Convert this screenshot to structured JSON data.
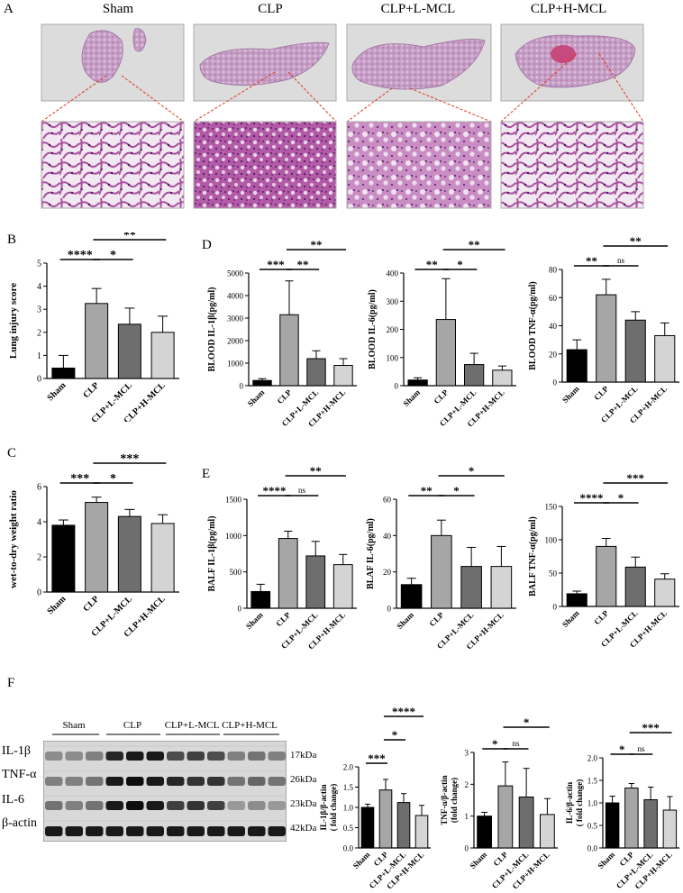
{
  "panels": {
    "A": {
      "letter": "A",
      "groups": [
        "Sham",
        "CLP",
        "CLP+L-MCL",
        "CLP+H-MCL"
      ]
    },
    "B": {
      "letter": "B"
    },
    "C": {
      "letter": "C"
    },
    "D": {
      "letter": "D"
    },
    "E": {
      "letter": "E"
    },
    "F": {
      "letter": "F",
      "blot_groups": [
        "Sham",
        "CLP",
        "CLP+L-MCL",
        "CLP+H-MCL"
      ],
      "rows": [
        {
          "protein": "IL-1β",
          "size": "17kDa"
        },
        {
          "protein": "TNF-α",
          "size": "26kDa"
        },
        {
          "protein": "IL-6",
          "size": "23kDa"
        },
        {
          "protein": "β-actin",
          "size": "42kDa"
        }
      ]
    }
  },
  "chart_data": [
    {
      "id": "B",
      "type": "bar",
      "categories": [
        "Sham",
        "CLP",
        "CLP+L-MCL",
        "CLP+H-MCL"
      ],
      "values": [
        0.45,
        3.25,
        2.35,
        2.0
      ],
      "errors": [
        0.55,
        0.65,
        0.7,
        0.7
      ],
      "ylabel": "Lung injury score",
      "ylabel2": "",
      "ylim": [
        0,
        5
      ],
      "yticks": [
        "0",
        "1",
        "2",
        "3",
        "4",
        "5"
      ],
      "sig": [
        {
          "from": 0,
          "to": 1,
          "label": "****",
          "level": 0
        },
        {
          "from": 1,
          "to": 2,
          "label": "*",
          "level": 0
        },
        {
          "from": 1,
          "to": 3,
          "label": "**",
          "level": 1
        }
      ]
    },
    {
      "id": "C",
      "type": "bar",
      "categories": [
        "Sham",
        "CLP",
        "CLP+L-MCL",
        "CLP+H-MCL"
      ],
      "values": [
        3.8,
        5.1,
        4.3,
        3.9
      ],
      "errors": [
        0.3,
        0.3,
        0.4,
        0.5
      ],
      "ylabel": "wet-to-dry weight ratio",
      "ylabel2": "",
      "ylim": [
        0,
        6
      ],
      "yticks": [
        "0",
        "2",
        "4",
        "6"
      ],
      "sig": [
        {
          "from": 0,
          "to": 1,
          "label": "***",
          "level": 0
        },
        {
          "from": 1,
          "to": 2,
          "label": "*",
          "level": 0
        },
        {
          "from": 1,
          "to": 3,
          "label": "***",
          "level": 1
        }
      ]
    },
    {
      "id": "D1",
      "type": "bar",
      "categories": [
        "Sham",
        "CLP",
        "CLP+L-MCL",
        "CLP+H-MCL"
      ],
      "values": [
        230,
        3150,
        1200,
        900
      ],
      "errors": [
        80,
        1500,
        350,
        300
      ],
      "ylabel": "BLOOD IL-1β(pg/ml)",
      "ylabel2": "",
      "ylim": [
        0,
        5000
      ],
      "yticks": [
        "0",
        "1000",
        "2000",
        "3000",
        "4000",
        "5000"
      ],
      "sig": [
        {
          "from": 0,
          "to": 1,
          "label": "***",
          "level": 0
        },
        {
          "from": 1,
          "to": 2,
          "label": "**",
          "level": 0
        },
        {
          "from": 1,
          "to": 3,
          "label": "**",
          "level": 1
        }
      ]
    },
    {
      "id": "D2",
      "type": "bar",
      "categories": [
        "Sham",
        "CLP",
        "CLP+L-MCL",
        "CLP+H-MCL"
      ],
      "values": [
        20,
        235,
        75,
        55
      ],
      "errors": [
        8,
        145,
        40,
        15
      ],
      "ylabel": "BLOOD IL-6(pg/ml)",
      "ylabel2": "",
      "ylim": [
        0,
        400
      ],
      "yticks": [
        "0",
        "100",
        "200",
        "300",
        "400"
      ],
      "sig": [
        {
          "from": 0,
          "to": 1,
          "label": "**",
          "level": 0
        },
        {
          "from": 1,
          "to": 2,
          "label": "*",
          "level": 0
        },
        {
          "from": 1,
          "to": 3,
          "label": "**",
          "level": 1
        }
      ]
    },
    {
      "id": "D3",
      "type": "bar",
      "categories": [
        "Sham",
        "CLP",
        "CLP+L-MCL",
        "CLP+H-MCL"
      ],
      "values": [
        23,
        62,
        44,
        33
      ],
      "errors": [
        7,
        11,
        6,
        9
      ],
      "ylabel": "BLOOD TNF-α(pg/ml)",
      "ylabel2": "",
      "ylim": [
        0,
        80
      ],
      "yticks": [
        "0",
        "20",
        "40",
        "60",
        "80"
      ],
      "sig": [
        {
          "from": 0,
          "to": 1,
          "label": "**",
          "level": 0
        },
        {
          "from": 1,
          "to": 2,
          "label": "ns",
          "level": 0
        },
        {
          "from": 1,
          "to": 3,
          "label": "**",
          "level": 1
        }
      ]
    },
    {
      "id": "E1",
      "type": "bar",
      "categories": [
        "Sham",
        "CLP",
        "CLP+L-MCL",
        "CLP+H-MCL"
      ],
      "values": [
        230,
        960,
        720,
        600
      ],
      "errors": [
        100,
        100,
        200,
        140
      ],
      "ylabel": "BALF IL-1β(pg/ml)",
      "ylabel2": "",
      "ylim": [
        0,
        1500
      ],
      "yticks": [
        "0",
        "500",
        "1000",
        "1500"
      ],
      "sig": [
        {
          "from": 0,
          "to": 1,
          "label": "****",
          "level": 0
        },
        {
          "from": 1,
          "to": 2,
          "label": "ns",
          "level": 0
        },
        {
          "from": 1,
          "to": 3,
          "label": "**",
          "level": 1
        }
      ]
    },
    {
      "id": "E2",
      "type": "bar",
      "categories": [
        "Sham",
        "CLP",
        "CLP+L-MCL",
        "CLP+H-MCL"
      ],
      "values": [
        13,
        40,
        23,
        23
      ],
      "errors": [
        3.5,
        8.5,
        10.5,
        11
      ],
      "ylabel": "BLAF IL-6(pg/ml)",
      "ylabel2": "",
      "ylim": [
        0,
        60
      ],
      "yticks": [
        "0",
        "20",
        "40",
        "60"
      ],
      "sig": [
        {
          "from": 0,
          "to": 1,
          "label": "**",
          "level": 0
        },
        {
          "from": 1,
          "to": 2,
          "label": "*",
          "level": 0
        },
        {
          "from": 1,
          "to": 3,
          "label": "*",
          "level": 1
        }
      ]
    },
    {
      "id": "E3",
      "type": "bar",
      "categories": [
        "Sham",
        "CLP",
        "CLP+L-MCL",
        "CLP+H-MCL"
      ],
      "values": [
        19,
        90,
        59,
        41
      ],
      "errors": [
        4,
        12,
        15,
        8
      ],
      "ylabel": "BALF TNF-α(pg/ml)",
      "ylabel2": "",
      "ylim": [
        0,
        150
      ],
      "yticks": [
        "0",
        "50",
        "100",
        "150"
      ],
      "sig": [
        {
          "from": 0,
          "to": 1,
          "label": "****",
          "level": 0
        },
        {
          "from": 1,
          "to": 2,
          "label": "*",
          "level": 0
        },
        {
          "from": 1,
          "to": 3,
          "label": "***",
          "level": 1
        }
      ]
    },
    {
      "id": "F1",
      "type": "bar",
      "categories": [
        "Sham",
        "CLP",
        "CLP+L-MCL",
        "CLP+H-MCL"
      ],
      "values": [
        1.0,
        1.43,
        1.12,
        0.8
      ],
      "errors": [
        0.08,
        0.26,
        0.22,
        0.25
      ],
      "ylabel": "IL-1β/β-actin",
      "ylabel2": "( fold change)",
      "ylim": [
        0,
        2.0
      ],
      "yticks": [
        "0.0",
        "0.5",
        "1.0",
        "1.5",
        "2.0"
      ],
      "sig": [
        {
          "from": 0,
          "to": 1,
          "label": "***",
          "level": 0
        },
        {
          "from": 1,
          "to": 2,
          "label": "*",
          "level": 1
        },
        {
          "from": 1,
          "to": 3,
          "label": "****",
          "level": 2
        }
      ]
    },
    {
      "id": "F2",
      "type": "bar",
      "categories": [
        "Sham",
        "CLP",
        "CLP+L-MCL",
        "CLP+H-MCL"
      ],
      "values": [
        1.0,
        1.95,
        1.6,
        1.05
      ],
      "errors": [
        0.12,
        0.75,
        0.9,
        0.5
      ],
      "ylabel": "TNF-α/β-actin",
      "ylabel2": "(fold change)",
      "ylim": [
        0,
        3
      ],
      "yticks": [
        "0",
        "1",
        "2",
        "3"
      ],
      "sig": [
        {
          "from": 0,
          "to": 1,
          "label": "*",
          "level": 0
        },
        {
          "from": 1,
          "to": 2,
          "label": "ns",
          "level": 0
        },
        {
          "from": 1,
          "to": 3,
          "label": "*",
          "level": 1
        }
      ]
    },
    {
      "id": "F3",
      "type": "bar",
      "categories": [
        "Sham",
        "CLP",
        "CLP+L-MCL",
        "CLP+H-MCL"
      ],
      "values": [
        1.0,
        1.33,
        1.07,
        0.84
      ],
      "errors": [
        0.15,
        0.1,
        0.28,
        0.3
      ],
      "ylabel": "IL-6/β-actin",
      "ylabel2": "( fold change)",
      "ylim": [
        0,
        2.0
      ],
      "yticks": [
        "0.0",
        "0.5",
        "1.0",
        "1.5",
        "2.0"
      ],
      "sig": [
        {
          "from": 0,
          "to": 1,
          "label": "*",
          "level": 0
        },
        {
          "from": 1,
          "to": 2,
          "label": "ns",
          "level": 0
        },
        {
          "from": 1,
          "to": 3,
          "label": "***",
          "level": 1
        }
      ]
    }
  ]
}
